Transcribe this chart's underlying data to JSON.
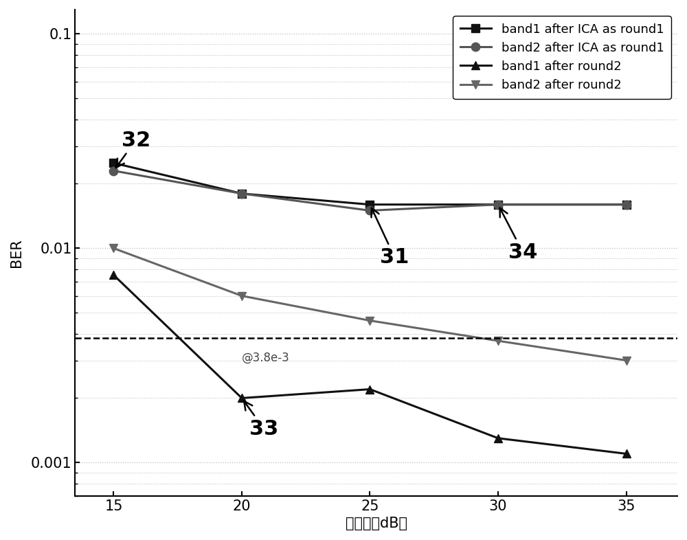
{
  "x": [
    15,
    20,
    25,
    30,
    35
  ],
  "band1_ica_round1": [
    0.025,
    0.018,
    0.016,
    0.016,
    0.016
  ],
  "band2_ica_round1": [
    0.023,
    0.018,
    0.015,
    0.016,
    0.016
  ],
  "band1_round2": [
    0.0075,
    0.002,
    0.0022,
    0.0013,
    0.0011
  ],
  "band2_round2": [
    0.01,
    0.006,
    0.0046,
    0.0037,
    0.003
  ],
  "hline_y": 0.0038,
  "hline_label": "@3.8e-3",
  "ylabel": "BER",
  "xlabel": "信噪比（dB）",
  "ylim_min": 0.0007,
  "ylim_max": 0.13,
  "legend_labels": [
    "band1 after ICA as round1",
    "band2 after ICA as round1",
    "band1 after round2",
    "band2 after round2"
  ]
}
